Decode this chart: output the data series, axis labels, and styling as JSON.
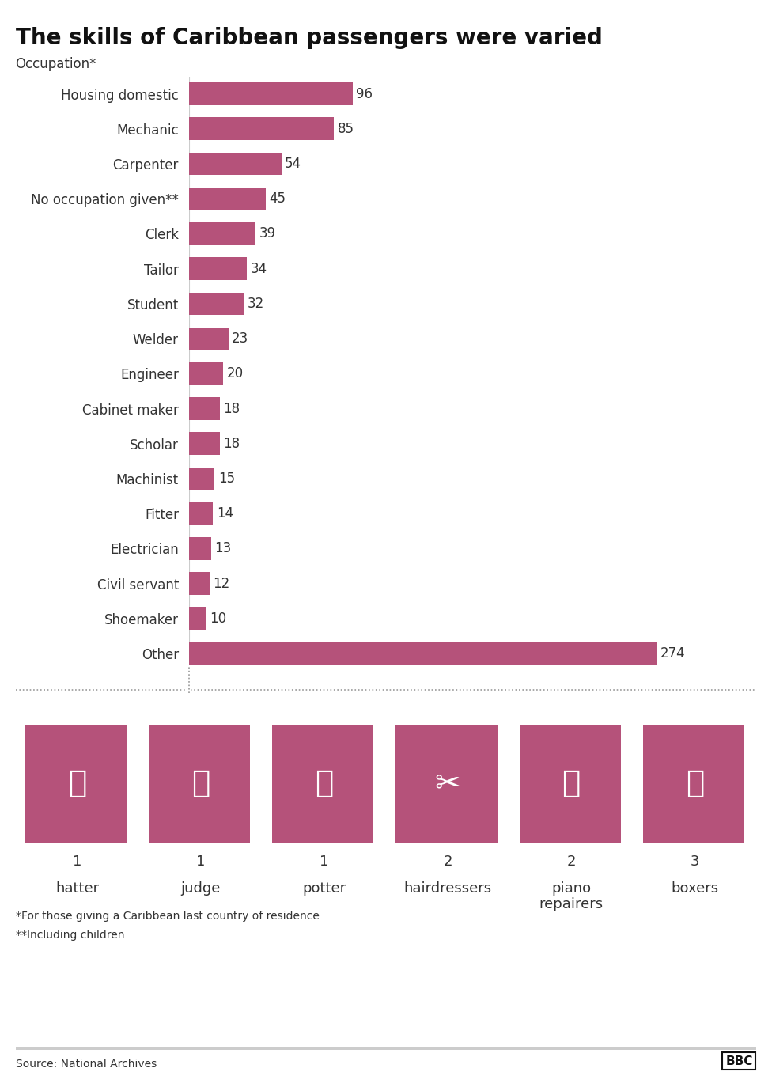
{
  "title": "The skills of Caribbean passengers were varied",
  "subtitle": "Occupation*",
  "categories": [
    "Housing domestic",
    "Mechanic",
    "Carpenter",
    "No occupation given**",
    "Clerk",
    "Tailor",
    "Student",
    "Welder",
    "Engineer",
    "Cabinet maker",
    "Scholar",
    "Machinist",
    "Fitter",
    "Electrician",
    "Civil servant",
    "Shoemaker",
    "Other"
  ],
  "values": [
    96,
    85,
    54,
    45,
    39,
    34,
    32,
    23,
    20,
    18,
    18,
    15,
    14,
    13,
    12,
    10,
    274
  ],
  "bar_color": "#b5527a",
  "background_color": "#ffffff",
  "icon_items": [
    {
      "count": "1",
      "label": "hatter"
    },
    {
      "count": "1",
      "label": "judge"
    },
    {
      "count": "1",
      "label": "potter"
    },
    {
      "count": "2",
      "label": "hairdressers"
    },
    {
      "count": "2",
      "label": "piano\nrepairers"
    },
    {
      "count": "3",
      "label": "boxers"
    }
  ],
  "footnote1": "*For those giving a Caribbean last country of residence",
  "footnote2": "**Including children",
  "source": "Source: National Archives",
  "dotted_line_color": "#999999",
  "text_color": "#333333",
  "bar_xlim": 310,
  "title_fontsize": 20,
  "subtitle_fontsize": 12,
  "bar_label_fontsize": 12,
  "ytick_fontsize": 12
}
